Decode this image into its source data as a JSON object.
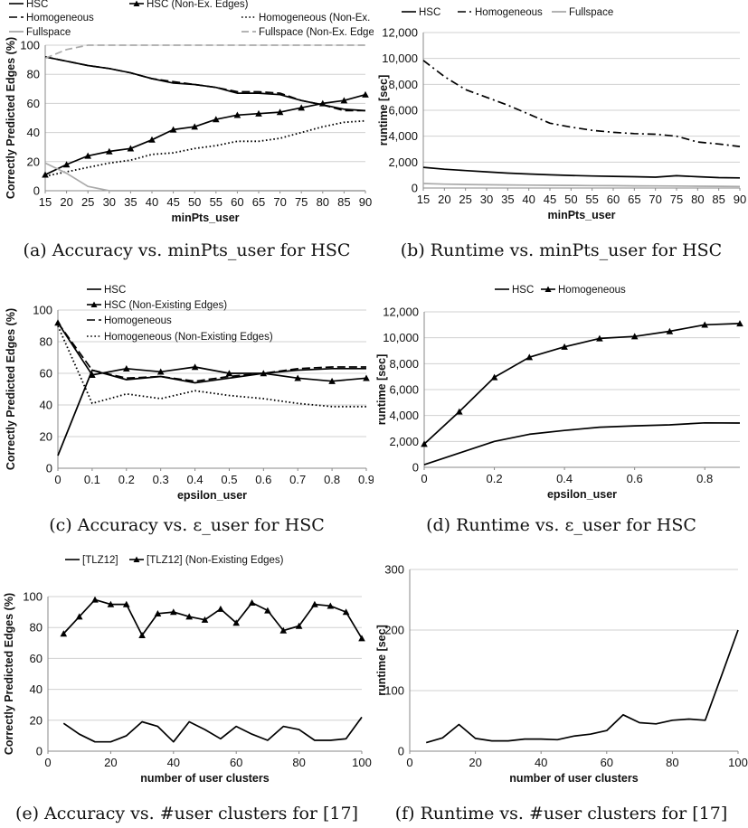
{
  "captions": [
    "(a) Accuracy vs. minPts_user for HSC",
    "(b) Runtime vs. minPts_user for HSC",
    "(c) Accuracy vs. ε_user for HSC",
    "(d) Runtime vs. ε_user for HSC",
    "(e) Accuracy vs. #user clusters for [17]",
    "(f) Runtime vs. #user clusters for [17]"
  ],
  "chart_data": [
    {
      "id": "a",
      "type": "line",
      "xlabel": "minPts_user",
      "ylabel": "Correctly Predicted Edges (%)",
      "xlim": [
        15,
        90
      ],
      "ylim": [
        0,
        100
      ],
      "xticks": [
        "15",
        "20",
        "25",
        "30",
        "35",
        "40",
        "45",
        "50",
        "55",
        "60",
        "65",
        "70",
        "75",
        "80",
        "85",
        "90"
      ],
      "yticks": [
        "0",
        "20",
        "40",
        "60",
        "80",
        "100"
      ],
      "x": [
        15,
        20,
        25,
        30,
        35,
        40,
        45,
        50,
        55,
        60,
        65,
        70,
        75,
        80,
        85,
        90
      ],
      "series": [
        {
          "name": "HSC",
          "style": "solid",
          "color": "#000000",
          "values": [
            92,
            89,
            86,
            84,
            81,
            77,
            74,
            73,
            71,
            67,
            67,
            66,
            62,
            59,
            56,
            55
          ]
        },
        {
          "name": "HSC (Non-Ex. Edges)",
          "style": "solid-triangle",
          "color": "#000000",
          "values": [
            11,
            18,
            24,
            27,
            29,
            35,
            42,
            44,
            49,
            52,
            53,
            54,
            57,
            60,
            62,
            66
          ]
        },
        {
          "name": "Homogeneous",
          "style": "dash",
          "color": "#000000",
          "values": [
            92,
            89,
            86,
            84,
            81,
            77,
            75,
            73,
            71,
            68,
            68,
            67,
            62,
            59,
            55,
            55
          ]
        },
        {
          "name": "Homogeneous (Non-Ex. Edges)",
          "style": "dot",
          "color": "#000000",
          "values": [
            10,
            13,
            16,
            19,
            21,
            25,
            26,
            29,
            31,
            34,
            34,
            36,
            40,
            44,
            47,
            48
          ]
        },
        {
          "name": "Fullspace",
          "style": "solid",
          "color": "#aaaaaa",
          "values": [
            19,
            12,
            3,
            0,
            0,
            0,
            0,
            0,
            0,
            0,
            0,
            0,
            0,
            0,
            0,
            0
          ]
        },
        {
          "name": "Fullspace (Non-Ex. Edges)",
          "style": "dash",
          "color": "#aaaaaa",
          "values": [
            91,
            97,
            100,
            100,
            100,
            100,
            100,
            100,
            100,
            100,
            100,
            100,
            100,
            100,
            100,
            100
          ]
        }
      ]
    },
    {
      "id": "b",
      "type": "line",
      "xlabel": "minPts_user",
      "ylabel": "runtime [sec]",
      "xlim": [
        15,
        90
      ],
      "ylim": [
        0,
        12000
      ],
      "xticks": [
        "15",
        "20",
        "25",
        "30",
        "35",
        "40",
        "45",
        "50",
        "55",
        "60",
        "65",
        "70",
        "75",
        "80",
        "85",
        "90"
      ],
      "yticks": [
        "0",
        "2,000",
        "4,000",
        "6,000",
        "8,000",
        "10,000",
        "12,000"
      ],
      "x": [
        15,
        20,
        25,
        30,
        35,
        40,
        45,
        50,
        55,
        60,
        65,
        70,
        75,
        80,
        85,
        90
      ],
      "series": [
        {
          "name": "HSC",
          "style": "solid",
          "color": "#000000",
          "values": [
            1600,
            1450,
            1350,
            1250,
            1150,
            1080,
            1020,
            970,
            930,
            900,
            870,
            840,
            950,
            870,
            800,
            780
          ]
        },
        {
          "name": "Homogeneous",
          "style": "dashdot",
          "color": "#000000",
          "values": [
            9850,
            8600,
            7600,
            7000,
            6400,
            5700,
            5000,
            4700,
            4450,
            4300,
            4200,
            4150,
            4000,
            3550,
            3400,
            3200
          ]
        },
        {
          "name": "Fullspace",
          "style": "solid",
          "color": "#aaaaaa",
          "values": [
            350,
            300,
            270,
            250,
            240,
            220,
            210,
            200,
            190,
            180,
            170,
            160,
            150,
            140,
            130,
            120
          ]
        }
      ]
    },
    {
      "id": "c",
      "type": "line",
      "xlabel": "epsilon_user",
      "ylabel": "Correctly Predicted Edges (%)",
      "xlim": [
        0,
        0.9
      ],
      "ylim": [
        0,
        100
      ],
      "xticks": [
        "0",
        "0.1",
        "0.2",
        "0.3",
        "0.4",
        "0.5",
        "0.6",
        "0.7",
        "0.8",
        "0.9"
      ],
      "yticks": [
        "0",
        "20",
        "40",
        "60",
        "80",
        "100"
      ],
      "x": [
        0,
        0.1,
        0.2,
        0.3,
        0.4,
        0.5,
        0.6,
        0.7,
        0.8,
        0.9
      ],
      "series": [
        {
          "name": "HSC",
          "style": "solid",
          "color": "#000000",
          "values": [
            8,
            62,
            56,
            58,
            54,
            57,
            60,
            62,
            63,
            63
          ]
        },
        {
          "name": "HSC  (Non-Existing Edges)",
          "style": "solid-triangle",
          "color": "#000000",
          "values": [
            92,
            59,
            63,
            61,
            64,
            60,
            60,
            57,
            55,
            57
          ]
        },
        {
          "name": "Homogeneous",
          "style": "dash",
          "color": "#000000",
          "values": [
            92,
            62,
            57,
            58,
            55,
            58,
            60,
            63,
            64,
            64
          ]
        },
        {
          "name": "Homogeneous (Non-Existing Edges)",
          "style": "dot",
          "color": "#000000",
          "values": [
            90,
            41,
            47,
            44,
            49,
            46,
            44,
            41,
            39,
            39
          ]
        }
      ]
    },
    {
      "id": "d",
      "type": "line",
      "xlabel": "epsilon_user",
      "ylabel": "runtime [sec]",
      "xlim": [
        0,
        0.9
      ],
      "ylim": [
        0,
        12000
      ],
      "xticks": [
        "0",
        "0.2",
        "0.4",
        "0.6",
        "0.8"
      ],
      "yticks": [
        "0",
        "2,000",
        "4,000",
        "6,000",
        "8,000",
        "10,000",
        "12,000"
      ],
      "x": [
        0,
        0.1,
        0.2,
        0.3,
        0.4,
        0.5,
        0.6,
        0.7,
        0.8,
        0.9
      ],
      "series": [
        {
          "name": "HSC",
          "style": "solid",
          "color": "#000000",
          "values": [
            200,
            1100,
            2000,
            2550,
            2850,
            3100,
            3200,
            3280,
            3430,
            3420
          ]
        },
        {
          "name": "Homogeneous",
          "style": "solid-triangle",
          "color": "#000000",
          "values": [
            1800,
            4300,
            6950,
            8500,
            9300,
            9950,
            10100,
            10500,
            11000,
            11100
          ]
        }
      ]
    },
    {
      "id": "e",
      "type": "line",
      "xlabel": "number of user clusters",
      "ylabel": "Correctly Predicted Edges (%)",
      "xlim": [
        0,
        100
      ],
      "ylim": [
        0,
        100
      ],
      "xticks": [
        "0",
        "20",
        "40",
        "60",
        "80",
        "100"
      ],
      "yticks": [
        "0",
        "20",
        "40",
        "60",
        "80",
        "100"
      ],
      "x": [
        5,
        10,
        15,
        20,
        25,
        30,
        35,
        40,
        45,
        50,
        55,
        60,
        65,
        70,
        75,
        80,
        85,
        90,
        95,
        100
      ],
      "series": [
        {
          "name": "[TLZ12]",
          "style": "solid",
          "color": "#000000",
          "values": [
            18,
            11,
            6,
            6,
            10,
            19,
            16,
            6,
            19,
            14,
            8,
            16,
            11,
            7,
            16,
            14,
            7,
            7,
            8,
            22
          ]
        },
        {
          "name": "[TLZ12] (Non-Existing Edges)",
          "style": "solid-triangle",
          "color": "#000000",
          "values": [
            76,
            87,
            98,
            95,
            95,
            75,
            89,
            90,
            87,
            85,
            92,
            83,
            96,
            91,
            78,
            81,
            95,
            94,
            90,
            73
          ]
        }
      ]
    },
    {
      "id": "f",
      "type": "line",
      "xlabel": "number of user clusters",
      "ylabel": "runtime [sec]",
      "xlim": [
        0,
        100
      ],
      "ylim": [
        0,
        300
      ],
      "xticks": [
        "0",
        "20",
        "40",
        "60",
        "80",
        "100"
      ],
      "yticks": [
        "0",
        "100",
        "200",
        "300"
      ],
      "x": [
        5,
        10,
        15,
        20,
        25,
        30,
        35,
        40,
        45,
        50,
        55,
        60,
        65,
        70,
        75,
        80,
        85,
        90,
        95,
        100
      ],
      "series": [
        {
          "name": "",
          "style": "solid",
          "color": "#000000",
          "values": [
            14,
            22,
            44,
            21,
            17,
            17,
            20,
            20,
            19,
            25,
            28,
            34,
            60,
            47,
            45,
            51,
            53,
            51,
            125,
            200
          ]
        }
      ]
    }
  ]
}
